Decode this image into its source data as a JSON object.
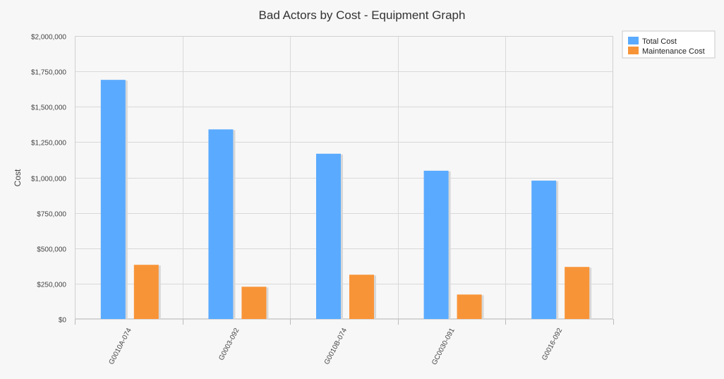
{
  "chart_data": {
    "type": "bar",
    "title": "Bad Actors by Cost - Equipment Graph",
    "xlabel": "",
    "ylabel": "Cost",
    "ylim": [
      0,
      2000000
    ],
    "yticks": [
      0,
      250000,
      500000,
      750000,
      1000000,
      1250000,
      1500000,
      1750000,
      2000000
    ],
    "ytick_labels": [
      "$0",
      "$250,000",
      "$500,000",
      "$750,000",
      "$1,000,000",
      "$1,250,000",
      "$1,500,000",
      "$1,750,000",
      "$2,000,000"
    ],
    "categories": [
      "G0010A-074",
      "G0003-092",
      "G0010B-074",
      "GC0030-091",
      "G0016-092"
    ],
    "series": [
      {
        "name": "Total Cost",
        "color": "#5aabff",
        "values": [
          1690000,
          1340000,
          1168000,
          1048000,
          978000
        ]
      },
      {
        "name": "Maintenance Cost",
        "color": "#f89438",
        "values": [
          383000,
          228000,
          313000,
          173000,
          368000
        ]
      }
    ],
    "grid": true,
    "legend_position": "top-right"
  }
}
